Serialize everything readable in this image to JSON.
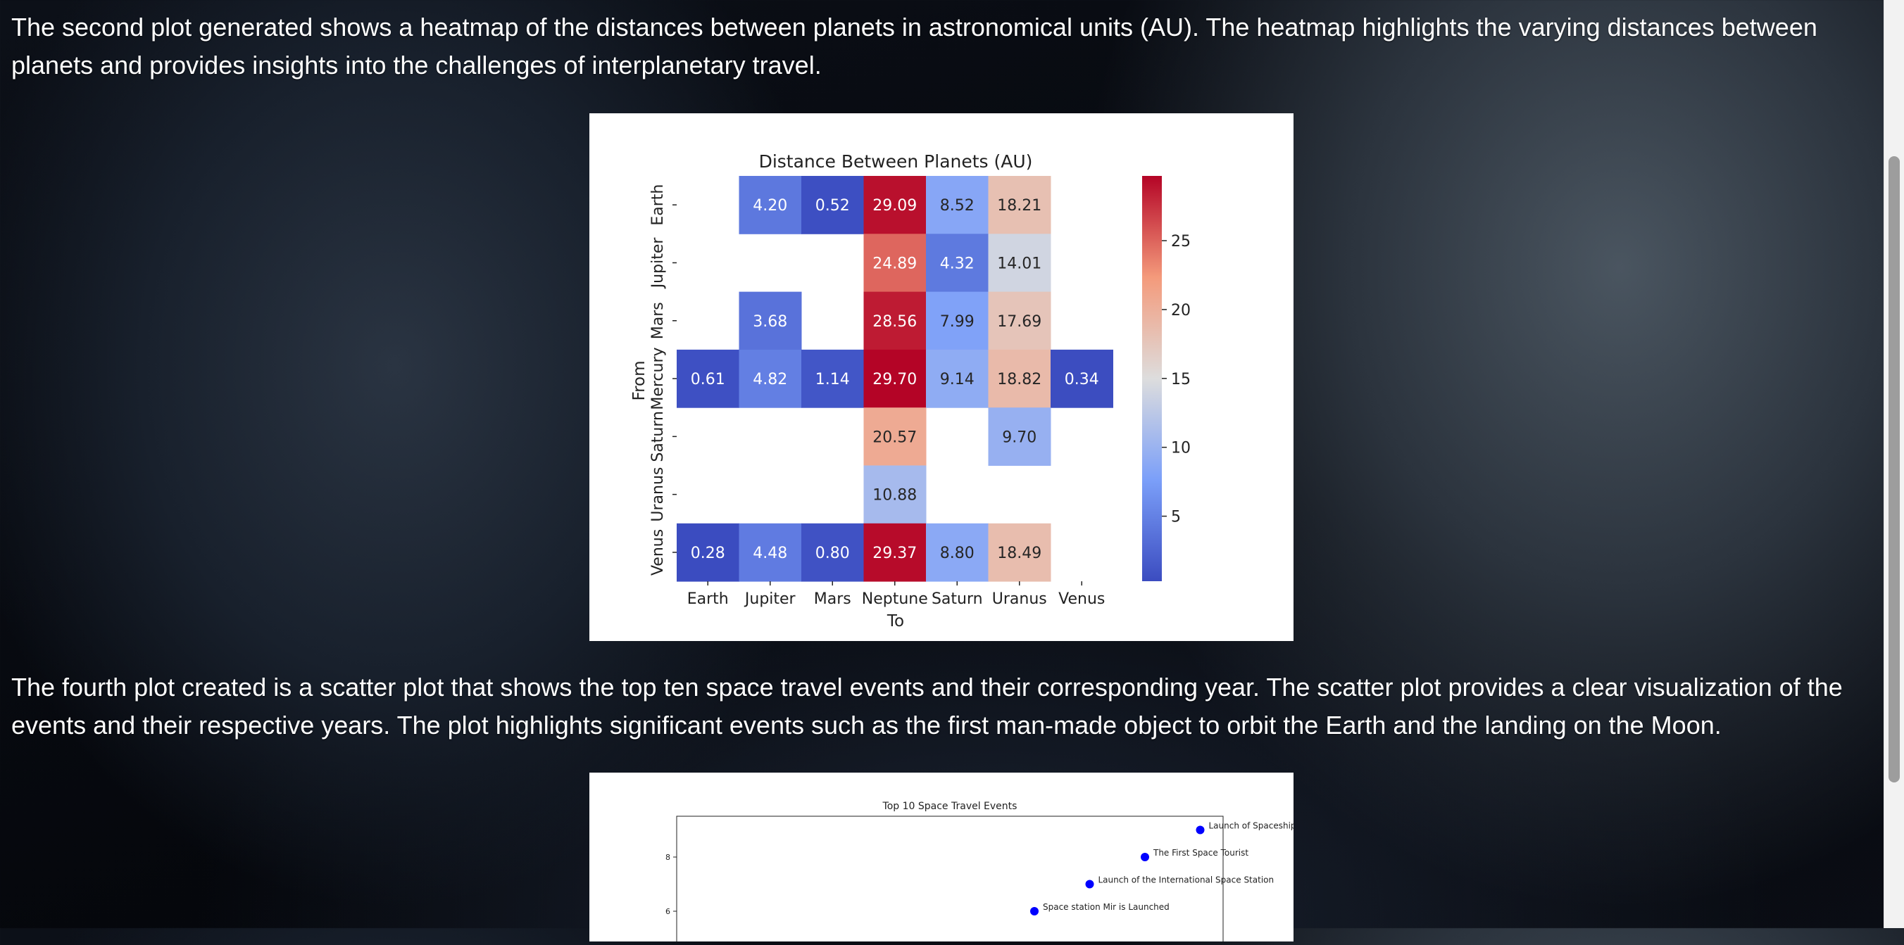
{
  "paragraphs": {
    "heatmap_intro": "The second plot generated shows a heatmap of the distances between planets in astronomical units (AU). The heatmap highlights the varying distances between planets and provides insights into the challenges of interplanetary travel.",
    "scatter_intro": "The fourth plot created is a scatter plot that shows the top ten space travel events and their corresponding year. The scatter plot provides a clear visualization of the events and their respective years. The plot highlights significant events such as the first man-made object to orbit the Earth and the landing on the Moon."
  },
  "chart_data": [
    {
      "type": "heatmap",
      "title": "Distance Between Planets (AU)",
      "xlabel": "To",
      "ylabel": "From",
      "x_categories": [
        "Earth",
        "Jupiter",
        "Mars",
        "Neptune",
        "Saturn",
        "Uranus",
        "Venus"
      ],
      "y_categories": [
        "Earth",
        "Jupiter",
        "Mars",
        "Mercury",
        "Saturn",
        "Uranus",
        "Venus"
      ],
      "values": [
        [
          null,
          4.2,
          0.52,
          29.09,
          8.52,
          18.21,
          null
        ],
        [
          null,
          null,
          null,
          24.89,
          4.32,
          14.01,
          null
        ],
        [
          null,
          3.68,
          null,
          28.56,
          7.99,
          17.69,
          null
        ],
        [
          0.61,
          4.82,
          1.14,
          29.7,
          9.14,
          18.82,
          0.34
        ],
        [
          null,
          null,
          null,
          20.57,
          null,
          9.7,
          null
        ],
        [
          null,
          null,
          null,
          10.88,
          null,
          null,
          null
        ],
        [
          0.28,
          4.48,
          0.8,
          29.37,
          8.8,
          18.49,
          null
        ]
      ],
      "colormap": "coolwarm",
      "vmin": 0.28,
      "vmax": 29.7,
      "colorbar_ticks": [
        5,
        10,
        15,
        20,
        25
      ],
      "colorbar_tick_labels": [
        "5",
        "10",
        "15",
        "20",
        "25"
      ]
    },
    {
      "type": "scatter",
      "title": "Top 10 Space Travel Events",
      "y_ticks": [
        6,
        8
      ],
      "y_tick_labels": [
        "6",
        "8"
      ],
      "points": [
        {
          "x": 9,
          "y": 9,
          "label": "Launch of Spaceship"
        },
        {
          "x": 8,
          "y": 8,
          "label": "The First Space Tourist"
        },
        {
          "x": 7,
          "y": 7,
          "label": "Launch of the International Space Station"
        },
        {
          "x": 6,
          "y": 6,
          "label": "Space station Mir is Launched"
        }
      ],
      "marker_color": "#0000ff"
    }
  ]
}
